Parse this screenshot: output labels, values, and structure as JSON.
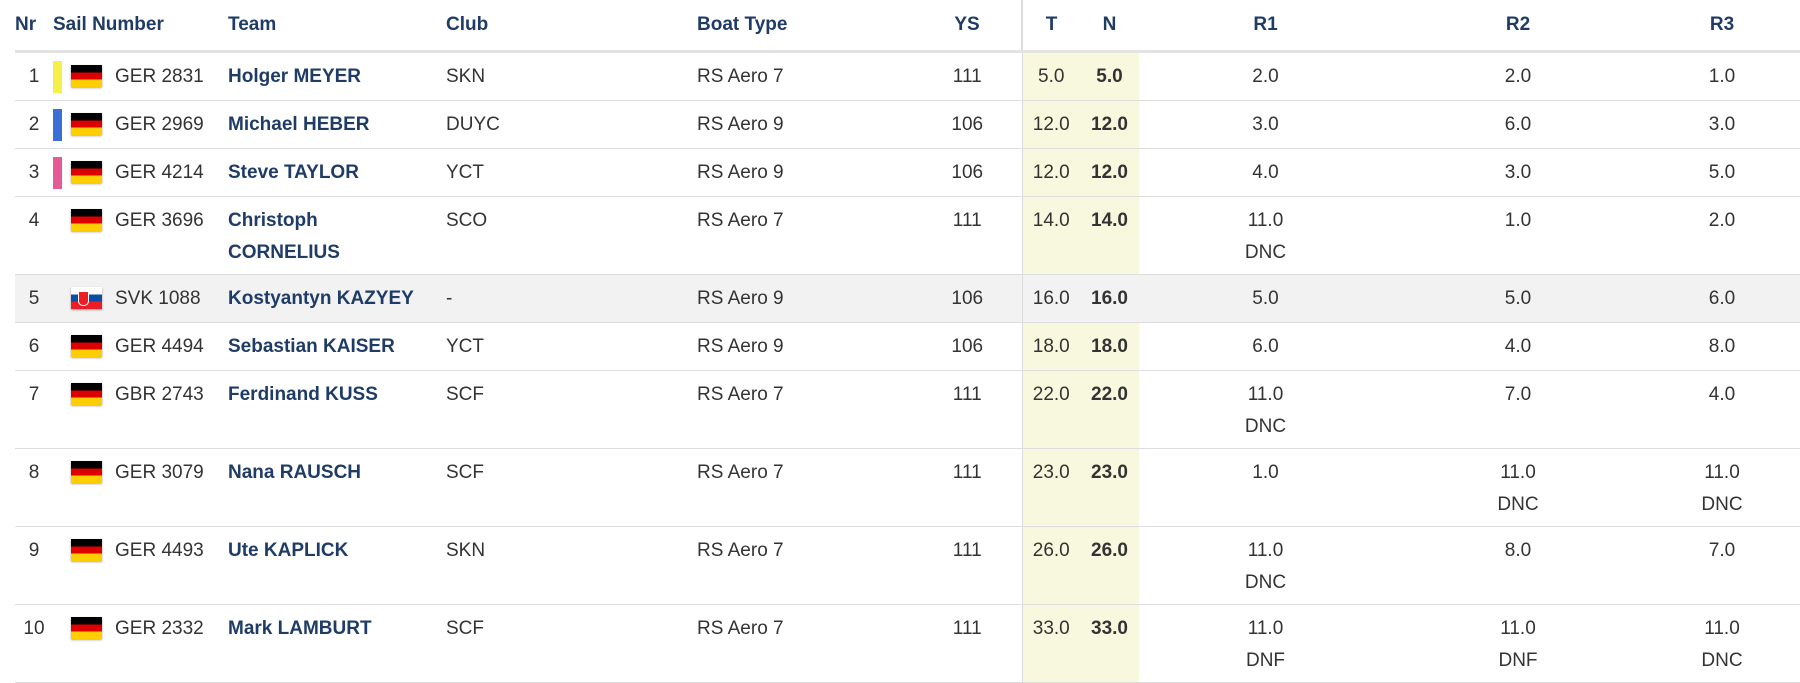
{
  "headers": {
    "nr": "Nr",
    "sail": "Sail Number",
    "team": "Team",
    "club": "Club",
    "boat": "Boat Type",
    "ys": "YS",
    "t": "T",
    "n": "N",
    "r1": "R1",
    "r2": "R2",
    "r3": "R3"
  },
  "colors": {
    "header_text": "#1f3c67",
    "team_text": "#1f3c67",
    "score_highlight": "#f8f8df",
    "marker_yellow": "#f5f04a",
    "marker_blue": "#3a6fd6",
    "marker_pink": "#e45b95"
  },
  "rows": [
    {
      "nr": "1",
      "flag": "germany-flag-icon",
      "sail": "GER 2831",
      "team": "Holger MEYER",
      "team2": "",
      "club": "SKN",
      "boat": "RS Aero 7",
      "ys": "111",
      "t": "5.0",
      "n": "5.0",
      "r1": "2.0",
      "r1b": "",
      "r2": "2.0",
      "r2b": "",
      "r3": "1.0",
      "r3b": "",
      "marker": "yellow"
    },
    {
      "nr": "2",
      "flag": "germany-flag-icon",
      "sail": "GER 2969",
      "team": "Michael HEBER",
      "team2": "",
      "club": "DUYC",
      "boat": "RS Aero 9",
      "ys": "106",
      "t": "12.0",
      "n": "12.0",
      "r1": "3.0",
      "r1b": "",
      "r2": "6.0",
      "r2b": "",
      "r3": "3.0",
      "r3b": "",
      "marker": "blue"
    },
    {
      "nr": "3",
      "flag": "germany-flag-icon",
      "sail": "GER 4214",
      "team": "Steve TAYLOR",
      "team2": "",
      "club": "YCT",
      "boat": "RS Aero 9",
      "ys": "106",
      "t": "12.0",
      "n": "12.0",
      "r1": "4.0",
      "r1b": "",
      "r2": "3.0",
      "r2b": "",
      "r3": "5.0",
      "r3b": "",
      "marker": "pink"
    },
    {
      "nr": "4",
      "flag": "germany-flag-icon",
      "sail": "GER 3696",
      "team": "Christoph",
      "team2": "CORNELIUS",
      "club": "SCO",
      "boat": "RS Aero 7",
      "ys": "111",
      "t": "14.0",
      "n": "14.0",
      "r1": "11.0",
      "r1b": "DNC",
      "r2": "1.0",
      "r2b": "",
      "r3": "2.0",
      "r3b": "",
      "marker": ""
    },
    {
      "nr": "5",
      "flag": "slovakia-flag-icon",
      "sail": "SVK 1088",
      "team": "Kostyantyn KAZYEY",
      "team2": "",
      "club": "-",
      "boat": "RS Aero 9",
      "ys": "106",
      "t": "16.0",
      "n": "16.0",
      "r1": "5.0",
      "r1b": "",
      "r2": "5.0",
      "r2b": "",
      "r3": "6.0",
      "r3b": "",
      "marker": ""
    },
    {
      "nr": "6",
      "flag": "germany-flag-icon",
      "sail": "GER 4494",
      "team": "Sebastian KAISER",
      "team2": "",
      "club": "YCT",
      "boat": "RS Aero 9",
      "ys": "106",
      "t": "18.0",
      "n": "18.0",
      "r1": "6.0",
      "r1b": "",
      "r2": "4.0",
      "r2b": "",
      "r3": "8.0",
      "r3b": "",
      "marker": ""
    },
    {
      "nr": "7",
      "flag": "germany-flag-icon",
      "sail": "GBR 2743",
      "team": "Ferdinand KUSS",
      "team2": "",
      "club": "SCF",
      "boat": "RS Aero 7",
      "ys": "111",
      "t": "22.0",
      "n": "22.0",
      "r1": "11.0",
      "r1b": "DNC",
      "r2": "7.0",
      "r2b": "",
      "r3": "4.0",
      "r3b": "",
      "marker": ""
    },
    {
      "nr": "8",
      "flag": "germany-flag-icon",
      "sail": "GER 3079",
      "team": "Nana RAUSCH",
      "team2": "",
      "club": "SCF",
      "boat": "RS Aero 7",
      "ys": "111",
      "t": "23.0",
      "n": "23.0",
      "r1": "1.0",
      "r1b": "",
      "r2": "11.0",
      "r2b": "DNC",
      "r3": "11.0",
      "r3b": "DNC",
      "marker": ""
    },
    {
      "nr": "9",
      "flag": "germany-flag-icon",
      "sail": "GER 4493",
      "team": "Ute KAPLICK",
      "team2": "",
      "club": "SKN",
      "boat": "RS Aero 7",
      "ys": "111",
      "t": "26.0",
      "n": "26.0",
      "r1": "11.0",
      "r1b": "DNC",
      "r2": "8.0",
      "r2b": "",
      "r3": "7.0",
      "r3b": "",
      "marker": ""
    },
    {
      "nr": "10",
      "flag": "germany-flag-icon",
      "sail": "GER 2332",
      "team": "Mark LAMBURT",
      "team2": "",
      "club": "SCF",
      "boat": "RS Aero 7",
      "ys": "111",
      "t": "33.0",
      "n": "33.0",
      "r1": "11.0",
      "r1b": "DNF",
      "r2": "11.0",
      "r2b": "DNF",
      "r3": "11.0",
      "r3b": "DNC",
      "marker": ""
    }
  ]
}
